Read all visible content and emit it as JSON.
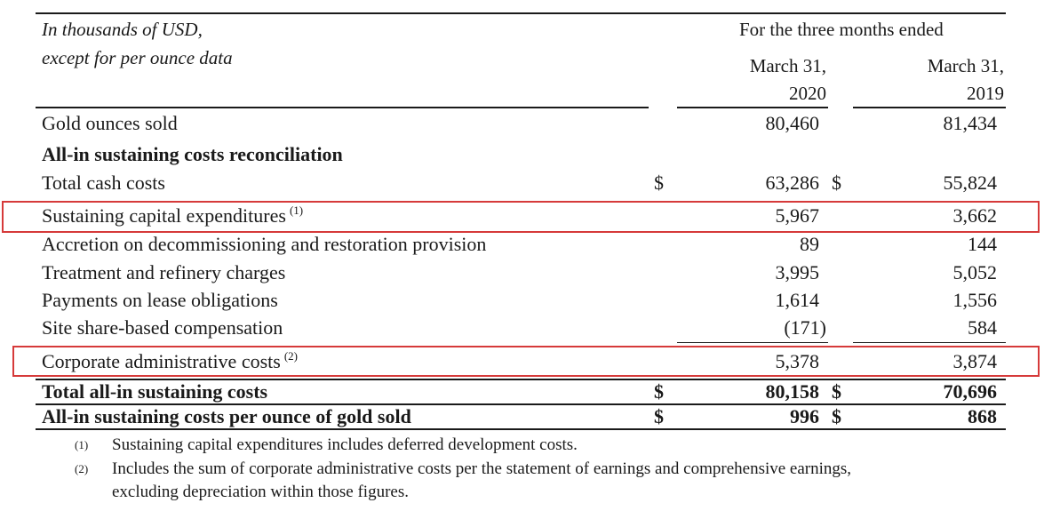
{
  "header": {
    "units_line1": "In thousands of USD,",
    "units_line2": "except for per ounce data",
    "period": "For the three months ended",
    "col1_line1": "March 31,",
    "col1_line2": "2020",
    "col2_line1": "March 31,",
    "col2_line2": "2019"
  },
  "rows": {
    "gold_ounces": {
      "label": "Gold ounces sold",
      "v2020": "80,460",
      "v2019": "81,434"
    },
    "section": {
      "label": "All-in sustaining costs reconciliation"
    },
    "total_cash": {
      "label": "Total cash costs",
      "cur": "$",
      "v2020": "63,286",
      "cur2": "$",
      "v2019": "55,824"
    },
    "sustaining_capex": {
      "label": "Sustaining capital expenditures",
      "note": "(1)",
      "v2020": "5,967",
      "v2019": "3,662"
    },
    "accretion": {
      "label": "Accretion on decommissioning and restoration provision",
      "v2020": "89",
      "v2019": "144"
    },
    "treatment": {
      "label": "Treatment and refinery charges",
      "v2020": "3,995",
      "v2019": "5,052"
    },
    "lease": {
      "label": "Payments on lease obligations",
      "v2020": "1,614",
      "v2019": "1,556"
    },
    "site_sbc": {
      "label": "Site share-based compensation",
      "v2020": "(171)",
      "v2019": "584"
    },
    "corp_admin": {
      "label": "Corporate administrative costs",
      "note": "(2)",
      "v2020": "5,378",
      "v2019": "3,874"
    },
    "total_aisc": {
      "label": "Total all-in sustaining costs",
      "cur": "$",
      "v2020": "80,158",
      "cur2": "$",
      "v2019": "70,696"
    },
    "aisc_per_oz": {
      "label": "All-in sustaining costs per ounce of gold sold",
      "cur": "$",
      "v2020": "996",
      "cur2": "$",
      "v2019": "868"
    }
  },
  "footnotes": [
    {
      "num": "(1)",
      "text": "Sustaining capital expenditures includes deferred development costs."
    },
    {
      "num": "(2)",
      "text_line1": "Includes the sum of corporate administrative costs per the statement of earnings and comprehensive earnings,",
      "text_line2": "excluding depreciation within those figures."
    }
  ],
  "colors": {
    "highlight_box": "#d63a3a",
    "text": "#1a1a1a"
  }
}
